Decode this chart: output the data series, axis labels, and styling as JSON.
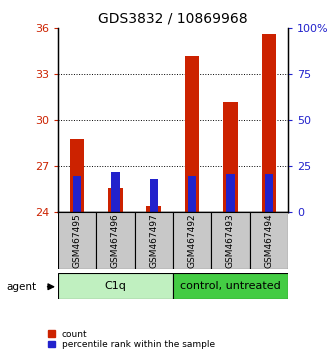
{
  "title": "GDS3832 / 10869968",
  "samples": [
    "GSM467495",
    "GSM467496",
    "GSM467497",
    "GSM467492",
    "GSM467493",
    "GSM467494"
  ],
  "group_labels": [
    "C1q",
    "control, untreated"
  ],
  "count_values": [
    28.8,
    25.6,
    24.4,
    34.2,
    31.2,
    35.6
  ],
  "percentile_values": [
    20,
    22,
    18,
    20,
    21,
    21
  ],
  "bar_bottom": 24.0,
  "ylim_left": [
    24,
    36
  ],
  "ylim_right": [
    0,
    100
  ],
  "yticks_left": [
    24,
    27,
    30,
    33,
    36
  ],
  "yticks_right": [
    0,
    25,
    50,
    75,
    100
  ],
  "ytick_labels_right": [
    "0",
    "25",
    "50",
    "75",
    "100%"
  ],
  "count_color": "#cc2200",
  "percentile_color": "#2222cc",
  "background_plot": "#ffffff",
  "background_labels": "#c8c8c8",
  "background_group_c1q": "#c0f0c0",
  "background_group_control": "#44cc44",
  "label_fontsize": 6.5,
  "title_fontsize": 10,
  "legend_fontsize": 6.5,
  "agent_label": "agent",
  "percentile_bar_width": 0.22,
  "count_bar_width": 0.38
}
